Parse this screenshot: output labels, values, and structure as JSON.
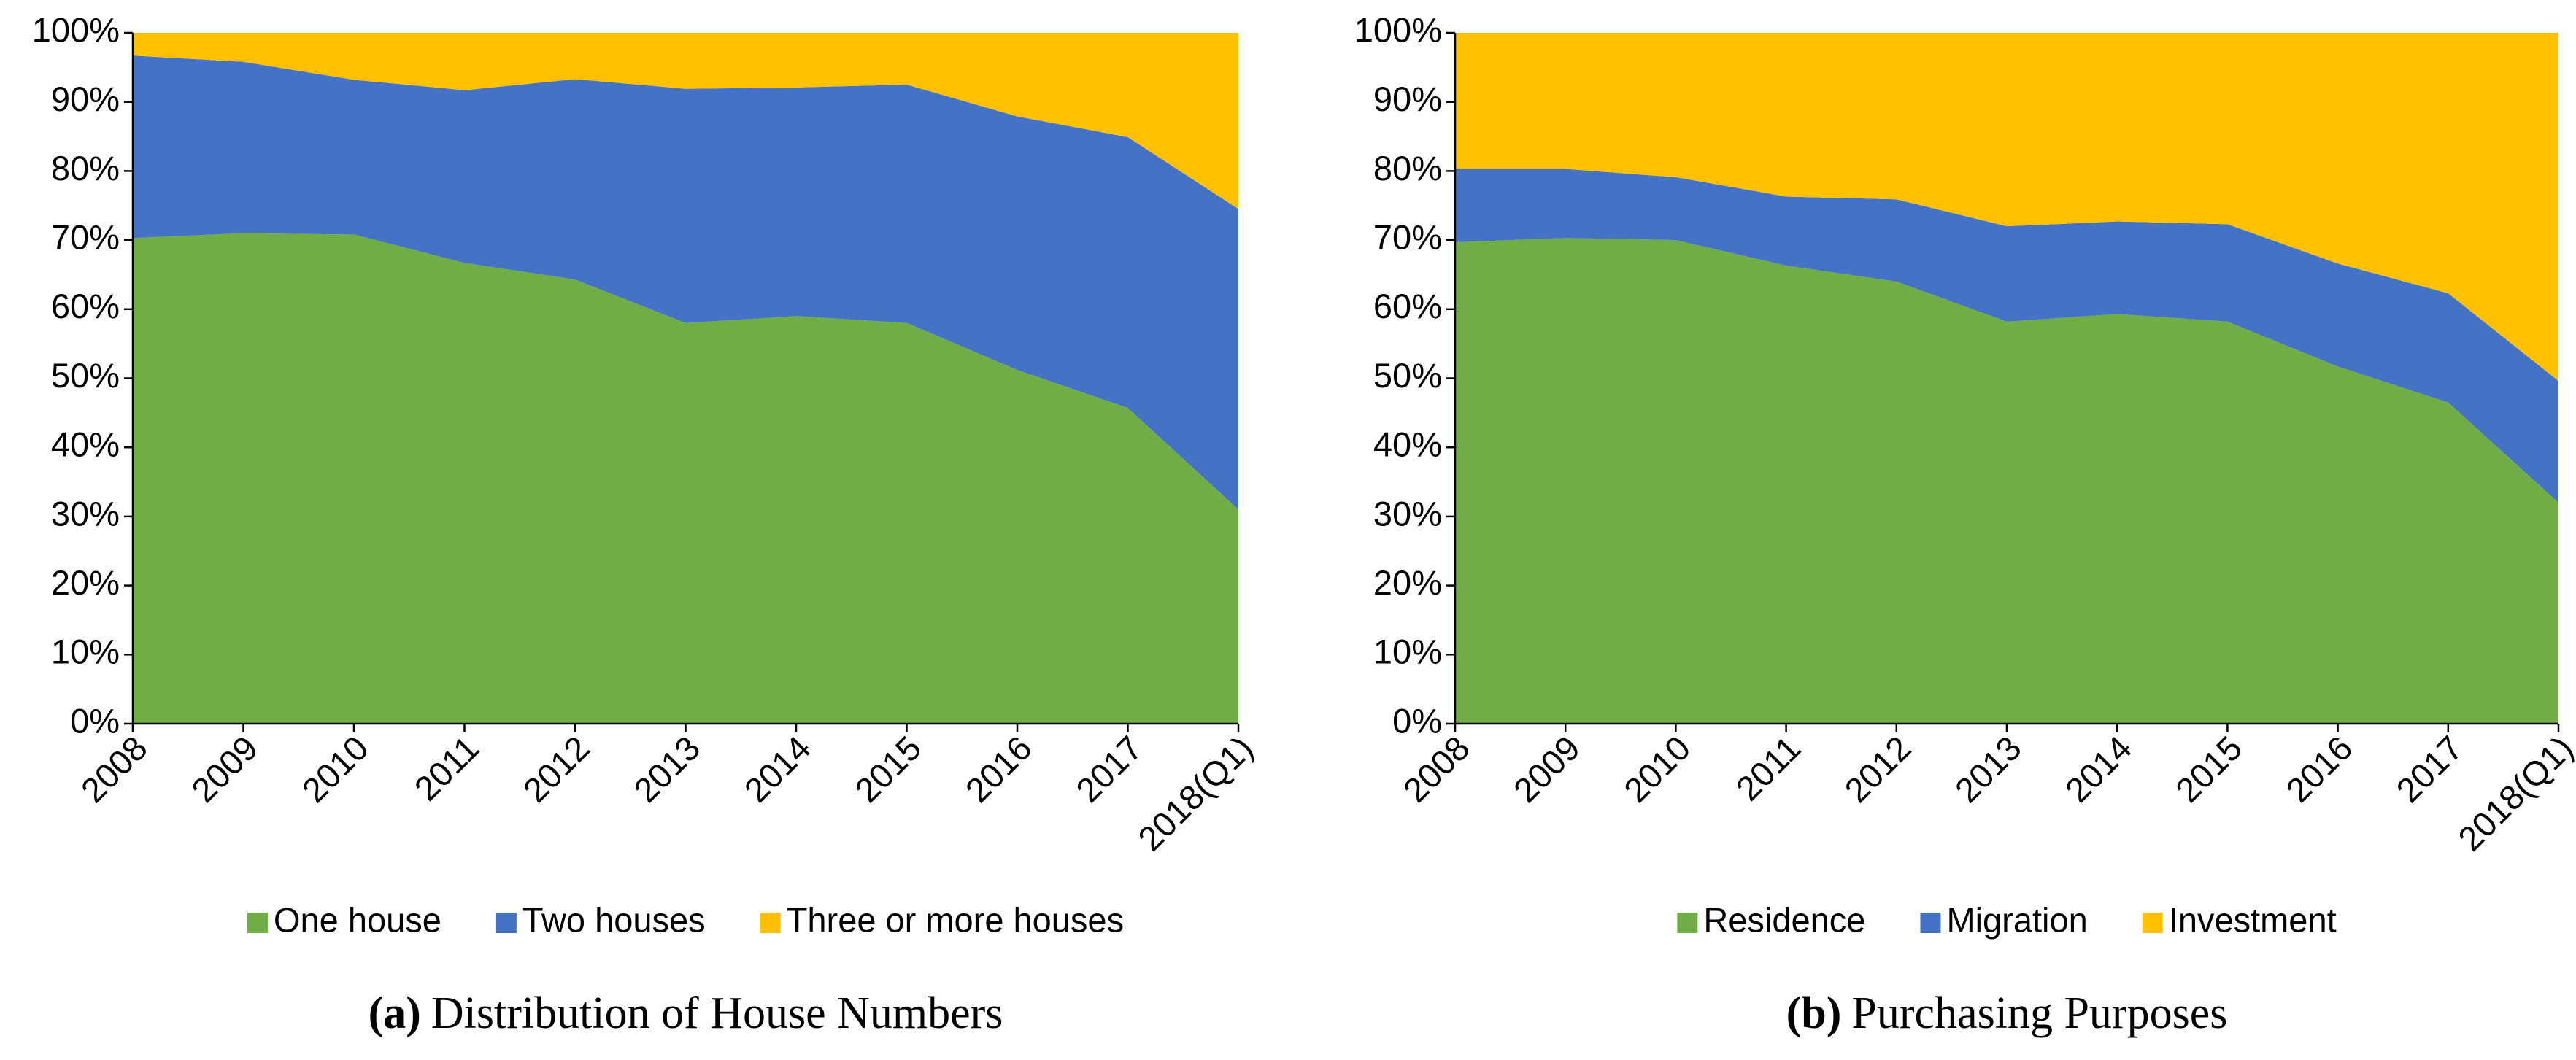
{
  "chart_data": [
    {
      "type": "stacked_area",
      "caption_label": "(a)",
      "caption": "Distribution of House Numbers",
      "categories": [
        "2008",
        "2009",
        "2010",
        "2011",
        "2012",
        "2013",
        "2014",
        "2015",
        "2016",
        "2017",
        "2018(Q1)"
      ],
      "series": [
        {
          "name": "One house",
          "color": "#70ad47",
          "values": [
            70.3,
            71.0,
            70.8,
            66.7,
            64.3,
            58.0,
            59.0,
            58.0,
            51.2,
            45.7,
            31.0
          ]
        },
        {
          "name": "Two houses",
          "color": "#4472c4",
          "values": [
            26.4,
            24.8,
            22.4,
            25.0,
            29.0,
            33.9,
            33.1,
            34.5,
            36.7,
            39.2,
            43.5
          ]
        },
        {
          "name": "Three or more houses",
          "color": "#ffc000",
          "values": [
            3.3,
            4.2,
            6.8,
            8.3,
            6.7,
            8.1,
            7.9,
            7.5,
            12.1,
            15.1,
            25.5
          ]
        }
      ],
      "ylim": [
        0,
        100
      ],
      "yticks": [
        {
          "value": 0,
          "label": "0%"
        },
        {
          "value": 10,
          "label": "10%"
        },
        {
          "value": 20,
          "label": "20%"
        },
        {
          "value": 30,
          "label": "30%"
        },
        {
          "value": 40,
          "label": "40%"
        },
        {
          "value": 50,
          "label": "50%"
        },
        {
          "value": 60,
          "label": "60%"
        },
        {
          "value": 70,
          "label": "70%"
        },
        {
          "value": 80,
          "label": "80%"
        },
        {
          "value": 90,
          "label": "90%"
        },
        {
          "value": 100,
          "label": "100%"
        }
      ],
      "legend": "bottom"
    },
    {
      "type": "stacked_area",
      "caption_label": "(b)",
      "caption": "Purchasing Purposes",
      "categories": [
        "2008",
        "2009",
        "2010",
        "2011",
        "2012",
        "2013",
        "2014",
        "2015",
        "2016",
        "2017",
        "2018(Q1)"
      ],
      "series": [
        {
          "name": "Residence",
          "color": "#70ad47",
          "values": [
            69.7,
            70.3,
            70.0,
            66.3,
            64.0,
            58.2,
            59.3,
            58.2,
            51.7,
            46.5,
            32.0
          ]
        },
        {
          "name": "Migration",
          "color": "#4472c4",
          "values": [
            10.6,
            10.0,
            9.1,
            10.0,
            11.9,
            13.8,
            13.4,
            14.1,
            14.9,
            15.8,
            17.6
          ]
        },
        {
          "name": "Investment",
          "color": "#ffc000",
          "values": [
            19.7,
            19.7,
            20.9,
            23.7,
            24.1,
            28.0,
            27.3,
            27.7,
            33.4,
            37.7,
            50.4
          ]
        }
      ],
      "ylim": [
        0,
        100
      ],
      "yticks": [
        {
          "value": 0,
          "label": "0%"
        },
        {
          "value": 10,
          "label": "10%"
        },
        {
          "value": 20,
          "label": "20%"
        },
        {
          "value": 30,
          "label": "30%"
        },
        {
          "value": 40,
          "label": "40%"
        },
        {
          "value": 50,
          "label": "50%"
        },
        {
          "value": 60,
          "label": "60%"
        },
        {
          "value": 70,
          "label": "70%"
        },
        {
          "value": 80,
          "label": "80%"
        },
        {
          "value": 90,
          "label": "90%"
        },
        {
          "value": 100,
          "label": "100%"
        }
      ],
      "legend": "bottom"
    }
  ]
}
